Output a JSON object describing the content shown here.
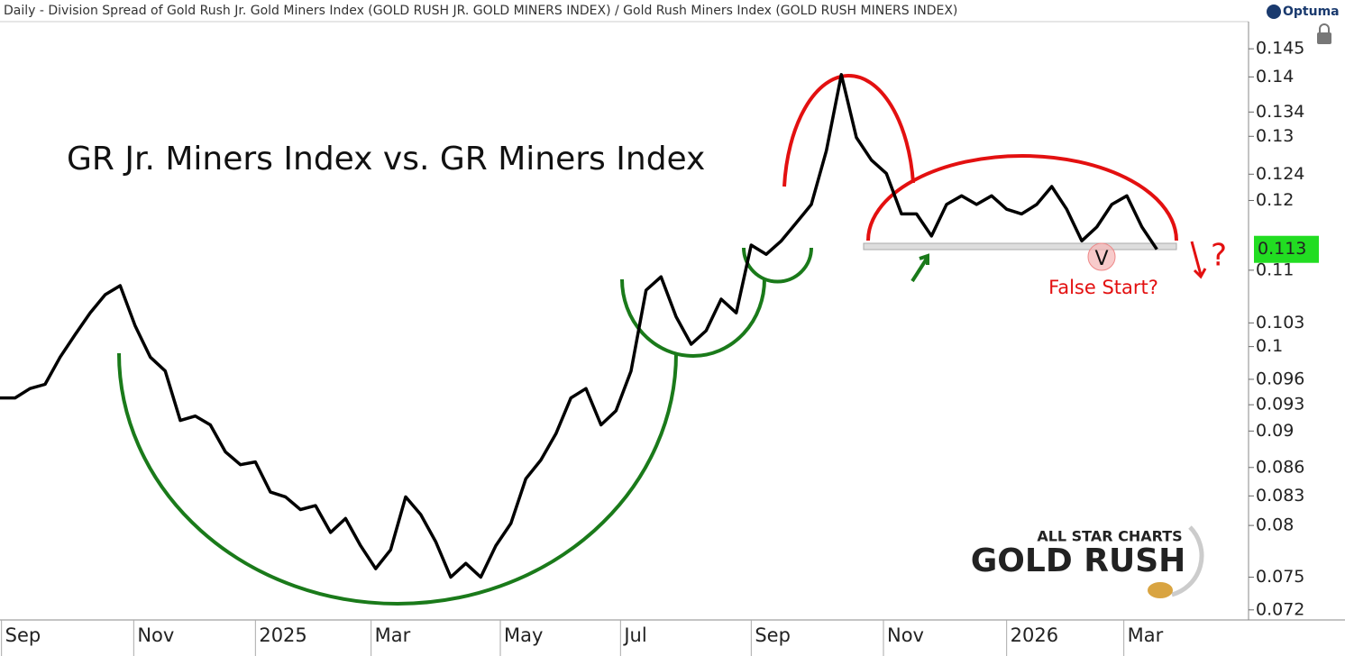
{
  "chart_data": {
    "type": "line",
    "header": "Daily - Division Spread of Gold Rush Jr. Gold Miners Index (GOLD RUSH JR. GOLD MINERS INDEX) / Gold Rush Miners Index (GOLD RUSH MINERS INDEX)",
    "brand": "Optuma",
    "title": "GR Jr. Miners Index vs. GR Miners Index",
    "annotations": [
      "False Start?",
      "?",
      "V"
    ],
    "watermark": [
      "ALL STAR CHARTS",
      "GOLD RUSH"
    ],
    "last_value_label": "0.113",
    "log_scale": true,
    "ylim": [
      0.0711,
      0.15
    ],
    "yticks": [
      0.072,
      0.075,
      0.08,
      0.083,
      0.086,
      0.09,
      0.093,
      0.096,
      0.1,
      0.103,
      0.11,
      0.12,
      0.124,
      0.13,
      0.134,
      0.14,
      0.145
    ],
    "xlim": [
      0,
      83.1
    ],
    "xticks": [
      {
        "value": 0.1,
        "label": "Sep"
      },
      {
        "value": 8.9,
        "label": "Nov"
      },
      {
        "value": 17,
        "label": "2025"
      },
      {
        "value": 24.7,
        "label": "Mar"
      },
      {
        "value": 33.3,
        "label": "May"
      },
      {
        "value": 41.3,
        "label": "Jul"
      },
      {
        "value": 50,
        "label": "Sep"
      },
      {
        "value": 58.8,
        "label": "Nov"
      },
      {
        "value": 67,
        "label": "2026"
      },
      {
        "value": 74.8,
        "label": "Mar"
      }
    ],
    "series": [
      {
        "color": "#000000",
        "values": [
          0.0938,
          0.0938,
          0.0949,
          0.0954,
          0.0987,
          0.1015,
          0.1043,
          0.1067,
          0.1079,
          0.1026,
          0.0987,
          0.097,
          0.0912,
          0.0917,
          0.0907,
          0.0877,
          0.0863,
          0.0866,
          0.0834,
          0.0829,
          0.0816,
          0.082,
          0.0793,
          0.0807,
          0.078,
          0.0758,
          0.0776,
          0.0829,
          0.0811,
          0.0784,
          0.075,
          0.0763,
          0.075,
          0.078,
          0.0802,
          0.0848,
          0.0868,
          0.0897,
          0.0938,
          0.0949,
          0.0907,
          0.0923,
          0.097,
          0.1073,
          0.1091,
          0.1038,
          0.1003,
          0.102,
          0.1061,
          0.1043,
          0.1135,
          0.1122,
          0.1141,
          0.1167,
          0.1194,
          0.1277,
          0.1404,
          0.1298,
          0.1262,
          0.1241,
          0.118,
          0.118,
          0.1148,
          0.1194,
          0.1207,
          0.1194,
          0.1207,
          0.1187,
          0.118,
          0.1194,
          0.1221,
          0.1187,
          0.1141,
          0.1161,
          0.1194,
          0.1207,
          0.1161,
          0.1129
        ]
      }
    ],
    "label_color": "#22dd22"
  }
}
